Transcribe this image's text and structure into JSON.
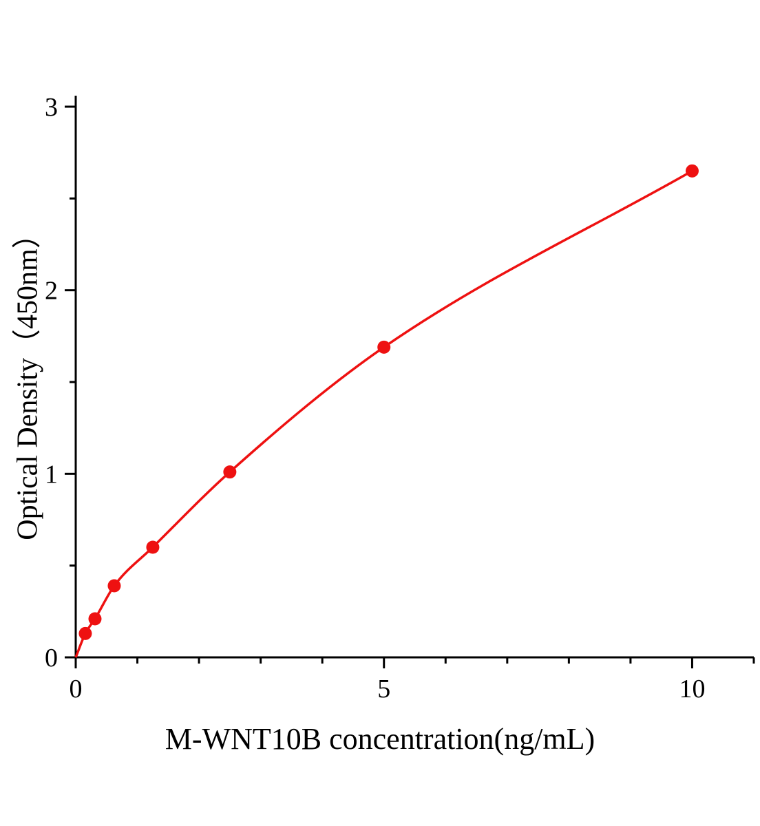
{
  "figure": {
    "background": "#ffffff"
  },
  "chart_data": {
    "type": "scatter",
    "title": "",
    "xlabel": "M-WNT10B concentration(ng/mL)",
    "ylabel": "Optical Density（450nm）",
    "x": [
      0.156,
      0.3125,
      0.625,
      1.25,
      2.5,
      5,
      10
    ],
    "y": [
      0.13,
      0.21,
      0.39,
      0.6,
      1.01,
      1.69,
      2.65
    ],
    "curve": "smooth-line-through-points",
    "curve_starts_at_origin": true,
    "xlim": [
      0,
      11
    ],
    "ylim": [
      0,
      3
    ],
    "x_major_ticks": [
      0,
      5,
      10
    ],
    "x_minor_tick_step": 1,
    "y_major_ticks": [
      0,
      1,
      2,
      3
    ],
    "y_minor_tick_step": 0.5,
    "tick_direction": "out",
    "grid": false,
    "legend_position": "none",
    "line_color": "#ee1111",
    "marker_color": "#ee1111",
    "marker_radius_px": 9.5,
    "axis_color": "#000000"
  }
}
